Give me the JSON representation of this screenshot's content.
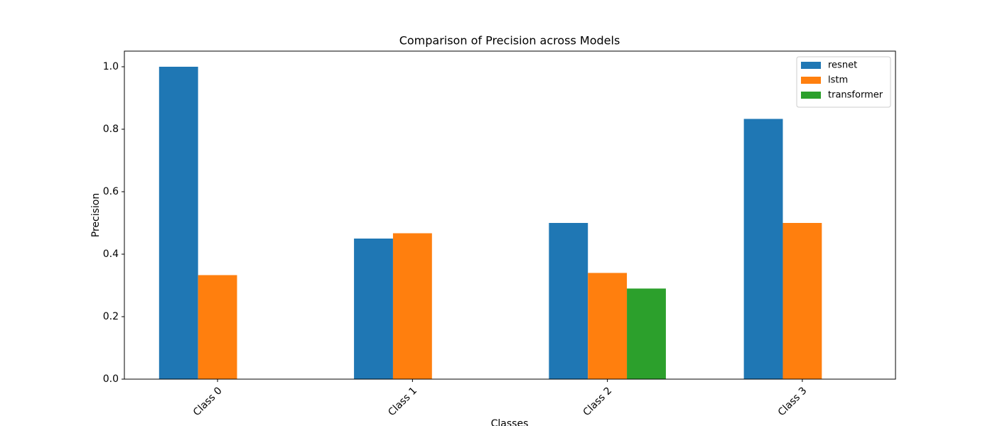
{
  "chart_data": {
    "type": "bar",
    "title": "Comparison of Precision across Models",
    "xlabel": "Classes",
    "ylabel": "Precision",
    "categories": [
      "Class 0",
      "Class 1",
      "Class 2",
      "Class 3"
    ],
    "series": [
      {
        "name": "resnet",
        "color": "#1f77b4",
        "values": [
          1.0,
          0.45,
          0.5,
          0.833
        ]
      },
      {
        "name": "lstm",
        "color": "#ff7f0e",
        "values": [
          0.333,
          0.467,
          0.34,
          0.5
        ]
      },
      {
        "name": "transformer",
        "color": "#2ca02c",
        "values": [
          0,
          0,
          0.29,
          0
        ]
      }
    ],
    "ylim": [
      0,
      1.05
    ],
    "yticks": [
      {
        "value": 0,
        "label": "0.0"
      },
      0.2,
      0.4,
      0.6,
      0.8,
      {
        "value": 1,
        "label": "1.0"
      }
    ],
    "legend": "upper right"
  }
}
